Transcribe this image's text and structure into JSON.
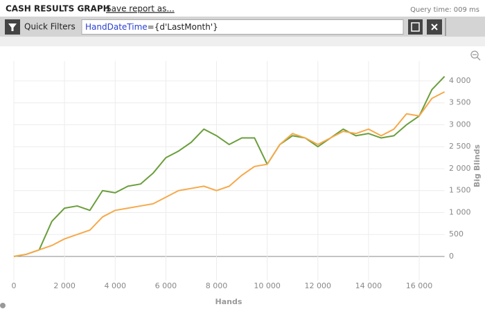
{
  "header": {
    "title": "CASH RESULTS GRAPH",
    "save_link": "Save report as...",
    "query_time": "Query time: 009 ms"
  },
  "filter_bar": {
    "label": "Quick Filters",
    "field": "HandDateTime",
    "expression": "={d'LastMonth'}"
  },
  "chart_data": {
    "type": "line",
    "x_label": "Hands",
    "y_label": "Big Blinds",
    "x": [
      0,
      500,
      1000,
      1500,
      2000,
      2500,
      3000,
      3500,
      4000,
      4500,
      5000,
      5500,
      6000,
      6500,
      7000,
      7500,
      8000,
      8500,
      9000,
      9500,
      10000,
      10500,
      11000,
      11500,
      12000,
      12500,
      13000,
      13500,
      14000,
      14500,
      15000,
      15500,
      16000,
      16500,
      17000
    ],
    "series": [
      {
        "color": "#6a9e3b",
        "values": [
          0,
          50,
          150,
          800,
          1100,
          1150,
          1050,
          1500,
          1450,
          1600,
          1650,
          1900,
          2250,
          2400,
          2600,
          2900,
          2750,
          2550,
          2700,
          2700,
          2100,
          2550,
          2750,
          2700,
          2500,
          2700,
          2900,
          2750,
          2800,
          2700,
          2750,
          3000,
          3200,
          3800,
          4100
        ]
      },
      {
        "color": "#f6a94a",
        "values": [
          0,
          50,
          150,
          250,
          400,
          500,
          600,
          900,
          1050,
          1100,
          1150,
          1200,
          1350,
          1500,
          1550,
          1600,
          1500,
          1600,
          1850,
          2050,
          2100,
          2550,
          2800,
          2700,
          2550,
          2700,
          2850,
          2800,
          2900,
          2750,
          2900,
          3250,
          3200,
          3600,
          3750
        ]
      }
    ],
    "xlim": [
      0,
      17000
    ],
    "ylim": [
      -550,
      4450
    ],
    "xticks": [
      0,
      {
        "value": 2000,
        "label": "2 000"
      },
      {
        "value": 4000,
        "label": "4 000"
      },
      {
        "value": 6000,
        "label": "6 000"
      },
      {
        "value": 8000,
        "label": "8 000"
      },
      {
        "value": 10000,
        "label": "10 000"
      },
      {
        "value": 12000,
        "label": "12 000"
      },
      {
        "value": 14000,
        "label": "14 000"
      },
      {
        "value": 16000,
        "label": "16 000"
      }
    ],
    "yticks": [
      0,
      500,
      {
        "value": 1000,
        "label": "1 000"
      },
      {
        "value": 1500,
        "label": "1 500"
      },
      {
        "value": 2000,
        "label": "2 000"
      },
      {
        "value": 2500,
        "label": "2 500"
      },
      {
        "value": 3000,
        "label": "3 000"
      },
      {
        "value": 3500,
        "label": "3 500"
      },
      {
        "value": 4000,
        "label": "4 000"
      }
    ],
    "grid": true
  }
}
